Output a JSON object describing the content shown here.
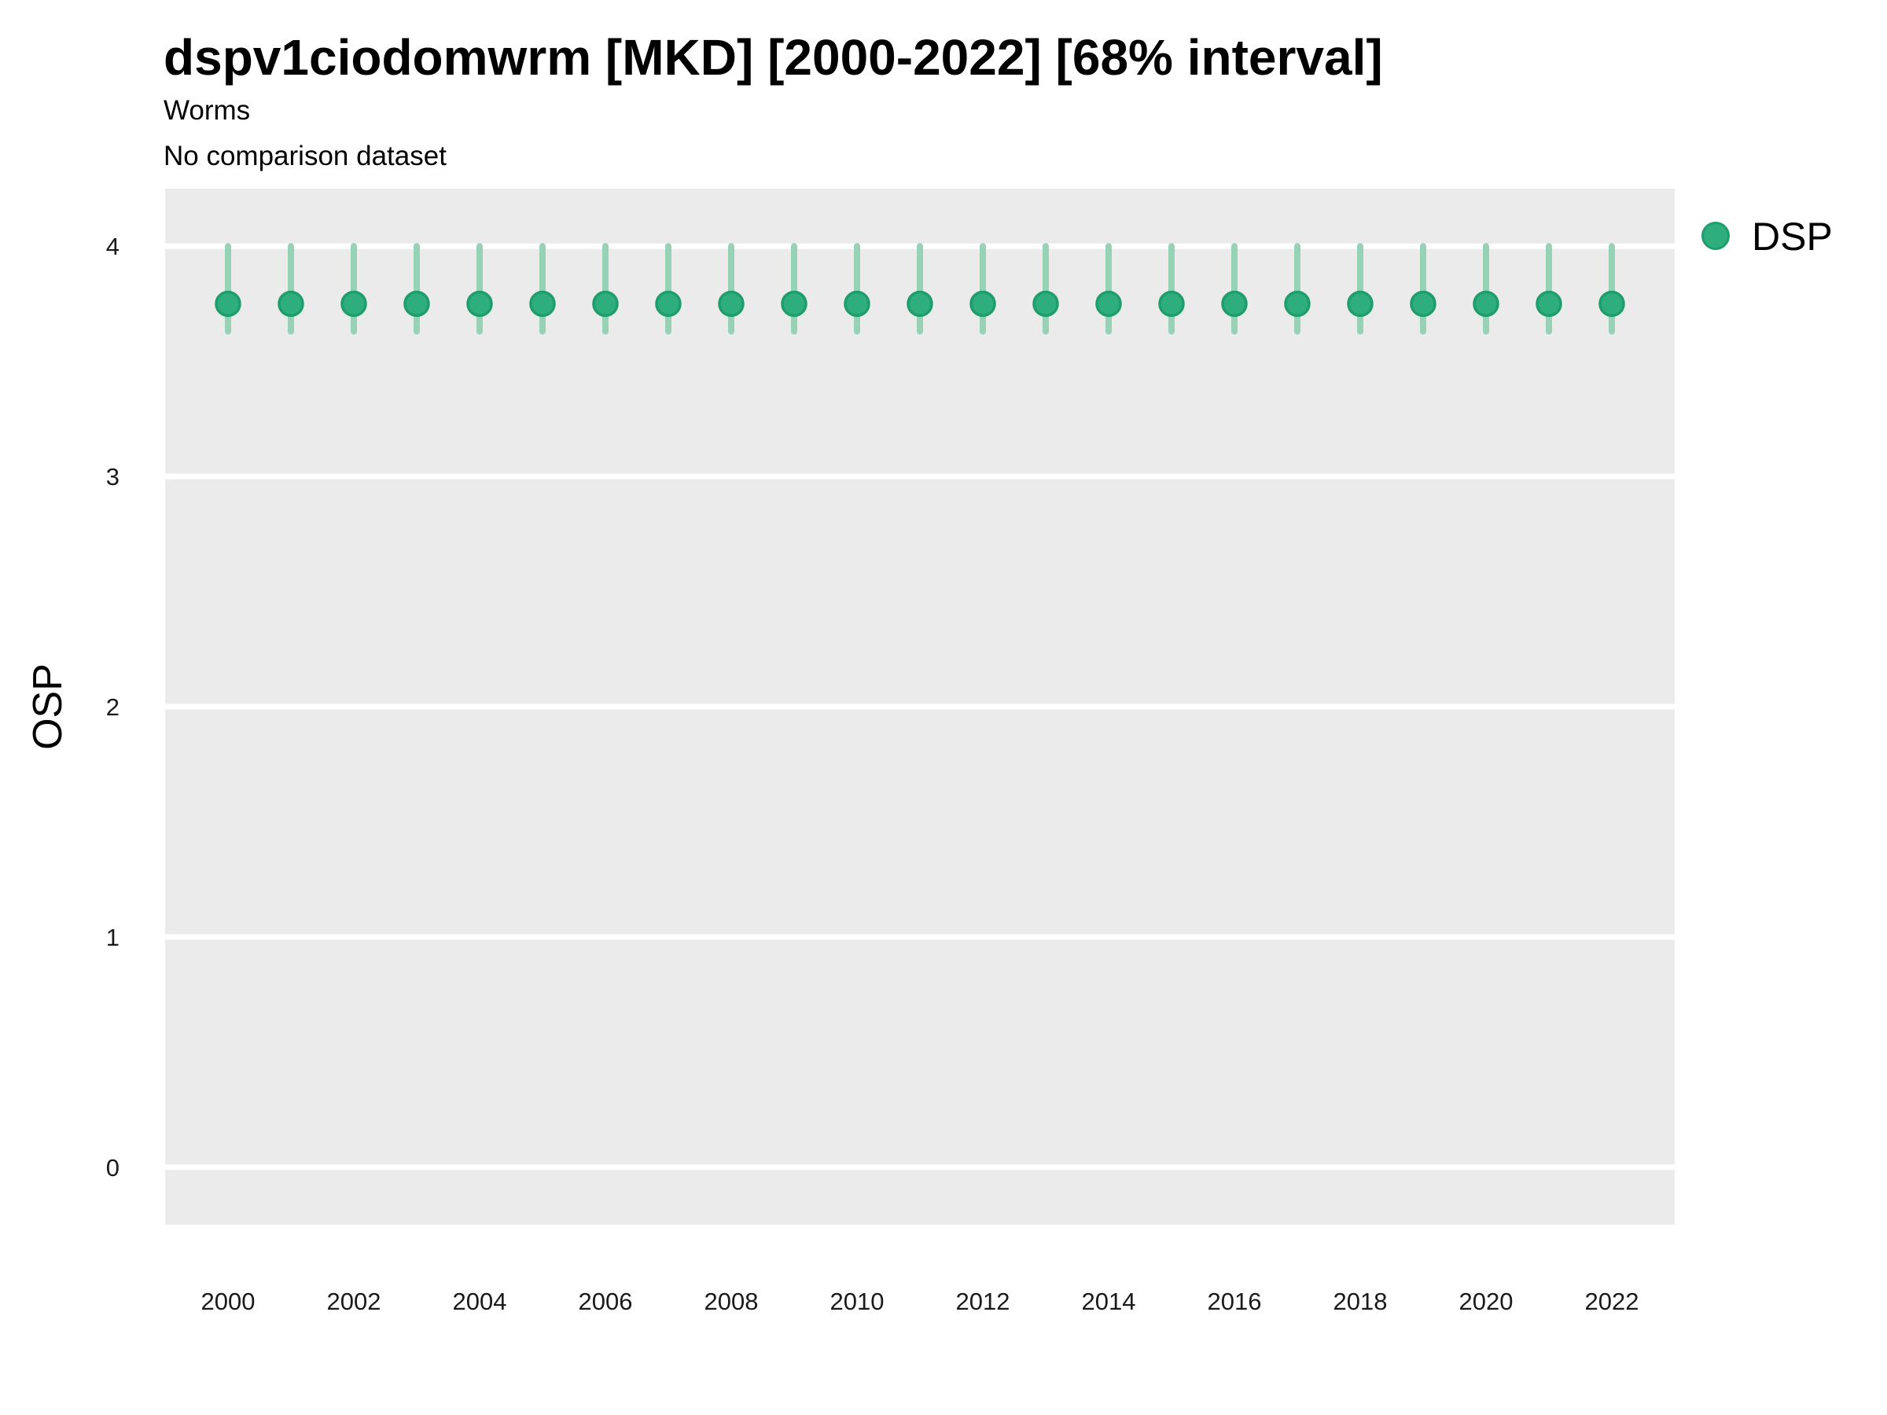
{
  "chart_data": {
    "type": "scatter",
    "variant": "point-interval",
    "title": "dspv1ciodomwrm [MKD] [2000-2022] [68% interval]",
    "subtitle": "Worms",
    "note": "No comparison dataset",
    "xlabel": "",
    "ylabel": "OSP",
    "interval_level": "68%",
    "legend_position": "right-top",
    "grid": "horizontal-major-only",
    "x": [
      2000,
      2001,
      2002,
      2003,
      2004,
      2005,
      2006,
      2007,
      2008,
      2009,
      2010,
      2011,
      2012,
      2013,
      2014,
      2015,
      2016,
      2017,
      2018,
      2019,
      2020,
      2021,
      2022
    ],
    "series": [
      {
        "name": "DSP",
        "y": [
          3.75,
          3.75,
          3.75,
          3.75,
          3.75,
          3.75,
          3.75,
          3.75,
          3.75,
          3.75,
          3.75,
          3.75,
          3.75,
          3.75,
          3.75,
          3.75,
          3.75,
          3.75,
          3.75,
          3.75,
          3.75,
          3.75,
          3.75
        ],
        "ymin": [
          3.63,
          3.63,
          3.63,
          3.63,
          3.63,
          3.63,
          3.63,
          3.63,
          3.63,
          3.63,
          3.63,
          3.63,
          3.63,
          3.63,
          3.63,
          3.63,
          3.63,
          3.63,
          3.63,
          3.63,
          3.63,
          3.63,
          3.63
        ],
        "ymax": [
          4.0,
          4.0,
          4.0,
          4.0,
          4.0,
          4.0,
          4.0,
          4.0,
          4.0,
          4.0,
          4.0,
          4.0,
          4.0,
          4.0,
          4.0,
          4.0,
          4.0,
          4.0,
          4.0,
          4.0,
          4.0,
          4.0,
          4.0
        ]
      }
    ],
    "xticks": [
      2000,
      2002,
      2004,
      2006,
      2008,
      2010,
      2012,
      2014,
      2016,
      2018,
      2020,
      2022
    ],
    "yticks": [
      0,
      1,
      2,
      3,
      4
    ],
    "xlim": [
      1999,
      2023
    ],
    "ylim": [
      -0.25,
      4.25
    ],
    "colors": {
      "panel_bg": "#EBEBEB",
      "grid": "#FFFFFF",
      "point_fill": "#2FAE7D",
      "point_stroke": "#1E9E6D",
      "interval": "#97D2B7",
      "tick_text": "#1A1A1A",
      "text": "#000000"
    }
  }
}
